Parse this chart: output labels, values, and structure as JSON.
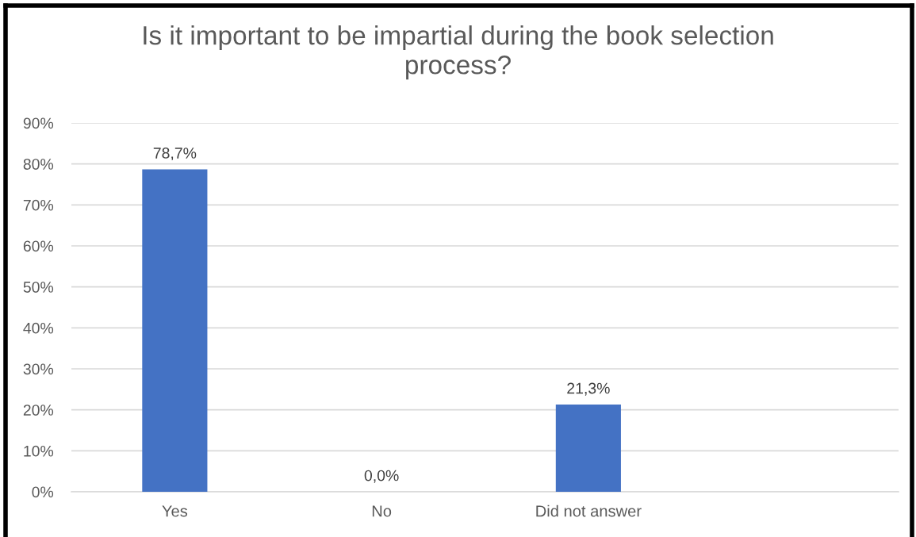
{
  "chart_data": {
    "type": "bar",
    "title": "Is it important to be impartial during the book selection process?",
    "categories": [
      "Yes",
      "No",
      "Did not answer",
      null
    ],
    "values": [
      78.7,
      0.0,
      21.3,
      null
    ],
    "value_labels": [
      "78,7%",
      "0,0%",
      "21,3%",
      null
    ],
    "color": "#4472c4",
    "ylim": [
      0,
      90
    ],
    "yticks": [
      {
        "value": 0,
        "label": "0%"
      },
      {
        "value": 10,
        "label": "10%"
      },
      {
        "value": 20,
        "label": "20%"
      },
      {
        "value": 30,
        "label": "30%"
      },
      {
        "value": 40,
        "label": "40%"
      },
      {
        "value": 50,
        "label": "50%"
      },
      {
        "value": 60,
        "label": "60%"
      },
      {
        "value": 70,
        "label": "70%"
      },
      {
        "value": 80,
        "label": "80%"
      },
      {
        "value": 90,
        "label": "90%"
      }
    ],
    "grid": "y"
  }
}
